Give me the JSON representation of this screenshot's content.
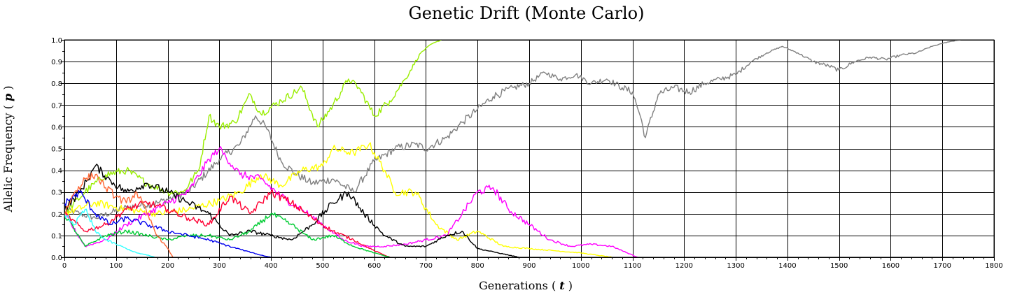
{
  "chart_data": {
    "type": "line",
    "title": "Genetic Drift (Monte Carlo)",
    "xlabel_prefix": "Generations",
    "xlabel_var": "t",
    "ylabel_prefix": "Allelic Frequency",
    "ylabel_var": "p",
    "xlim": [
      0,
      1800
    ],
    "ylim": [
      0,
      1
    ],
    "x_ticks": [
      0,
      100,
      200,
      300,
      400,
      500,
      600,
      700,
      800,
      900,
      1000,
      1100,
      1200,
      1300,
      1400,
      1500,
      1600,
      1700,
      1800
    ],
    "y_ticks": [
      "0.0",
      "0.1",
      "0.2",
      "0.3",
      "0.4",
      "0.5",
      "0.6",
      "0.7",
      "0.8",
      "0.9",
      "1.0"
    ],
    "grid": true,
    "legend": "none",
    "series": [
      {
        "color": "#808080",
        "x": [
          0,
          60,
          120,
          180,
          240,
          300,
          340,
          370,
          390,
          420,
          450,
          480,
          520,
          560,
          600,
          640,
          680,
          700,
          740,
          770,
          800,
          830,
          870,
          900,
          930,
          960,
          990,
          1020,
          1050,
          1080,
          1100,
          1115,
          1125,
          1150,
          1180,
          1210,
          1240,
          1270,
          1300,
          1330,
          1360,
          1390,
          1420,
          1450,
          1480,
          1500,
          1530,
          1560,
          1590,
          1620,
          1650,
          1680,
          1710,
          1735
        ],
        "y": [
          0.22,
          0.18,
          0.23,
          0.25,
          0.3,
          0.45,
          0.52,
          0.65,
          0.6,
          0.44,
          0.38,
          0.34,
          0.36,
          0.3,
          0.44,
          0.5,
          0.52,
          0.5,
          0.55,
          0.62,
          0.68,
          0.74,
          0.78,
          0.8,
          0.85,
          0.82,
          0.84,
          0.8,
          0.82,
          0.78,
          0.76,
          0.65,
          0.55,
          0.75,
          0.78,
          0.76,
          0.8,
          0.82,
          0.84,
          0.9,
          0.94,
          0.97,
          0.94,
          0.9,
          0.88,
          0.86,
          0.9,
          0.92,
          0.91,
          0.93,
          0.94,
          0.97,
          0.99,
          1.0
        ]
      },
      {
        "color": "#99ee00",
        "x": [
          0,
          40,
          80,
          120,
          160,
          200,
          230,
          260,
          280,
          300,
          330,
          360,
          380,
          420,
          460,
          490,
          520,
          550,
          570,
          600,
          630,
          660,
          690,
          710,
          730
        ],
        "y": [
          0.2,
          0.3,
          0.38,
          0.4,
          0.34,
          0.3,
          0.3,
          0.4,
          0.65,
          0.6,
          0.62,
          0.75,
          0.66,
          0.72,
          0.78,
          0.6,
          0.7,
          0.82,
          0.78,
          0.65,
          0.72,
          0.82,
          0.94,
          0.98,
          1.0
        ]
      },
      {
        "color": "#ffff00",
        "x": [
          0,
          60,
          120,
          180,
          240,
          300,
          340,
          380,
          420,
          460,
          500,
          520,
          560,
          590,
          620,
          640,
          680,
          720,
          760,
          800,
          850,
          900,
          950,
          1000,
          1030,
          1060
        ],
        "y": [
          0.2,
          0.25,
          0.22,
          0.2,
          0.22,
          0.26,
          0.3,
          0.38,
          0.33,
          0.4,
          0.42,
          0.5,
          0.48,
          0.52,
          0.4,
          0.3,
          0.3,
          0.15,
          0.08,
          0.12,
          0.05,
          0.04,
          0.03,
          0.02,
          0.01,
          0.0
        ]
      },
      {
        "color": "#ff00ff",
        "x": [
          0,
          40,
          80,
          120,
          160,
          200,
          240,
          280,
          300,
          340,
          380,
          420,
          460,
          500,
          540,
          580,
          620,
          660,
          700,
          740,
          770,
          800,
          830,
          860,
          900,
          940,
          980,
          1020,
          1060,
          1090,
          1110
        ],
        "y": [
          0.2,
          0.05,
          0.08,
          0.15,
          0.2,
          0.25,
          0.3,
          0.45,
          0.5,
          0.38,
          0.36,
          0.28,
          0.22,
          0.15,
          0.08,
          0.05,
          0.05,
          0.06,
          0.08,
          0.1,
          0.2,
          0.3,
          0.32,
          0.22,
          0.15,
          0.08,
          0.05,
          0.06,
          0.05,
          0.02,
          0.0
        ]
      },
      {
        "color": "#000000",
        "x": [
          0,
          30,
          60,
          90,
          120,
          160,
          200,
          240,
          280,
          320,
          360,
          400,
          440,
          480,
          520,
          550,
          580,
          620,
          660,
          700,
          740,
          770,
          800,
          840,
          880
        ],
        "y": [
          0.22,
          0.3,
          0.42,
          0.35,
          0.3,
          0.34,
          0.3,
          0.25,
          0.2,
          0.1,
          0.12,
          0.1,
          0.08,
          0.15,
          0.25,
          0.3,
          0.2,
          0.1,
          0.05,
          0.05,
          0.1,
          0.12,
          0.04,
          0.02,
          0.0
        ]
      },
      {
        "color": "#ff0033",
        "x": [
          0,
          40,
          80,
          120,
          160,
          200,
          240,
          280,
          320,
          360,
          400,
          440,
          480,
          520,
          560,
          600,
          630
        ],
        "y": [
          0.2,
          0.12,
          0.15,
          0.22,
          0.25,
          0.22,
          0.18,
          0.15,
          0.28,
          0.2,
          0.3,
          0.25,
          0.18,
          0.12,
          0.08,
          0.03,
          0.0
        ]
      },
      {
        "color": "#00cc33",
        "x": [
          0,
          40,
          80,
          120,
          160,
          200,
          240,
          280,
          320,
          360,
          400,
          440,
          480,
          520,
          560,
          600,
          630
        ],
        "y": [
          0.2,
          0.05,
          0.1,
          0.12,
          0.1,
          0.08,
          0.1,
          0.1,
          0.08,
          0.12,
          0.2,
          0.15,
          0.08,
          0.1,
          0.05,
          0.02,
          0.0
        ]
      },
      {
        "color": "#0000ee",
        "x": [
          0,
          30,
          60,
          90,
          120,
          160,
          200,
          240,
          280,
          320,
          350,
          380,
          400
        ],
        "y": [
          0.25,
          0.3,
          0.2,
          0.15,
          0.18,
          0.15,
          0.12,
          0.1,
          0.08,
          0.05,
          0.03,
          0.01,
          0.0
        ]
      },
      {
        "color": "#ff6633",
        "x": [
          0,
          20,
          40,
          60,
          80,
          100,
          120,
          140,
          160,
          180,
          200,
          210
        ],
        "y": [
          0.2,
          0.3,
          0.36,
          0.38,
          0.32,
          0.28,
          0.25,
          0.3,
          0.2,
          0.1,
          0.04,
          0.0
        ]
      },
      {
        "color": "#33ffff",
        "x": [
          0,
          20,
          40,
          60,
          80,
          100,
          120,
          140,
          160,
          175
        ],
        "y": [
          0.2,
          0.15,
          0.22,
          0.12,
          0.08,
          0.06,
          0.04,
          0.02,
          0.01,
          0.0
        ]
      }
    ]
  }
}
